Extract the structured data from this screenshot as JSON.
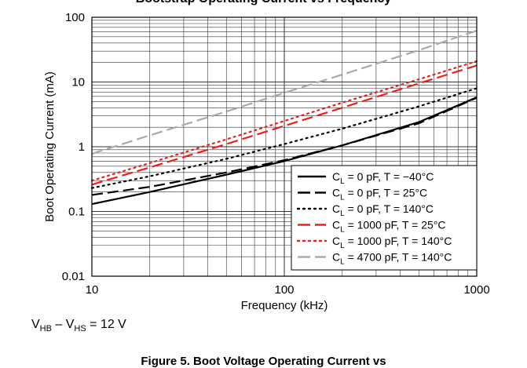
{
  "figure": {
    "top_title": "Bootstrap Operating Current vs Frequency",
    "caption": "Figure 5. Boot Voltage Operating Current vs",
    "condition": {
      "v1": "V",
      "s1": "HB",
      "dash": " – ",
      "v2": "V",
      "s2": "HS",
      "rest": " = 12 V"
    }
  },
  "chart_data": {
    "type": "line",
    "title": "Bootstrap Operating Current vs Frequency",
    "xlabel": "Frequency (kHz)",
    "ylabel": "Boot Operating Current (mA)",
    "xscale": "log",
    "yscale": "log",
    "xlim": [
      10,
      1000
    ],
    "ylim": [
      0.01,
      100
    ],
    "x_ticks": [
      10,
      100,
      1000
    ],
    "x_tick_labels": [
      "10",
      "100",
      "1000"
    ],
    "y_ticks": [
      0.01,
      0.1,
      1,
      10,
      100
    ],
    "y_tick_labels": [
      "0.01",
      "0.1",
      "1",
      "10",
      "100"
    ],
    "grid": true,
    "legend_position": "bottom-right",
    "series": [
      {
        "name": "CL = 0 pF, T = −40°C",
        "legend_cap": "0 pF, T = −40°C",
        "color": "#000000",
        "dash": "solid",
        "x": [
          10,
          20,
          50,
          100,
          200,
          500,
          1000
        ],
        "y": [
          0.13,
          0.2,
          0.37,
          0.6,
          1.05,
          2.4,
          5.8
        ]
      },
      {
        "name": "CL = 0 pF, T = 25°C",
        "legend_cap": "0 pF, T = 25°C",
        "color": "#000000",
        "dash": "dash",
        "x": [
          10,
          20,
          50,
          100,
          200,
          500,
          1000
        ],
        "y": [
          0.18,
          0.24,
          0.4,
          0.62,
          1.05,
          2.3,
          5.7
        ]
      },
      {
        "name": "CL = 0 pF, T = 140°C",
        "legend_cap": "0 pF, T = 140°C",
        "color": "#000000",
        "dash": "dot",
        "x": [
          10,
          20,
          50,
          100,
          200,
          500,
          1000
        ],
        "y": [
          0.23,
          0.35,
          0.65,
          1.1,
          1.9,
          4.2,
          8.0
        ]
      },
      {
        "name": "CL = 1000 pF, T = 25°C",
        "legend_cap": "1000 pF, T = 25°C",
        "color": "#e8211d",
        "dash": "dash",
        "x": [
          10,
          20,
          50,
          100,
          200,
          500,
          1000
        ],
        "y": [
          0.26,
          0.48,
          1.1,
          2.1,
          4.0,
          9.5,
          18
        ]
      },
      {
        "name": "CL = 1000 pF, T = 140°C",
        "legend_cap": "1000 pF, T = 140°C",
        "color": "#e8211d",
        "dash": "dot",
        "x": [
          10,
          20,
          50,
          100,
          200,
          500,
          1000
        ],
        "y": [
          0.3,
          0.56,
          1.3,
          2.5,
          4.8,
          11,
          21
        ]
      },
      {
        "name": "CL = 4700 pF, T = 140°C",
        "legend_cap": "4700 pF, T = 140°C",
        "color": "#aaaaaa",
        "dash": "dash",
        "x": [
          10,
          20,
          50,
          100,
          200,
          500,
          1000
        ],
        "y": [
          0.78,
          1.5,
          3.5,
          6.8,
          13,
          31,
          62
        ]
      }
    ],
    "legend_prefix": "C",
    "legend_sub": "L",
    "legend_eq": " = "
  }
}
